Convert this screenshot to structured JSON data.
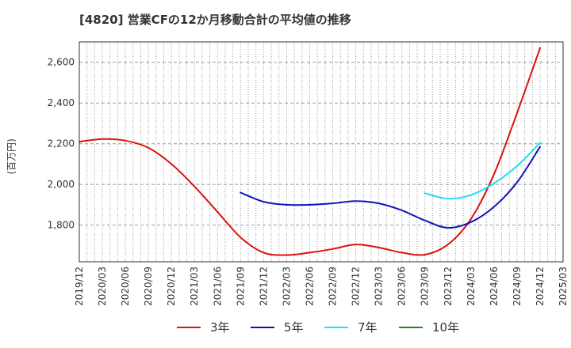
{
  "chart_data": {
    "type": "line",
    "title": "[4820]  営業CFの12か月移動合計の平均値の推移",
    "ylabel": "(百万円)",
    "xlabel": "",
    "ylim": [
      1620,
      2700
    ],
    "yticks": [
      1800,
      2000,
      2200,
      2400,
      2600
    ],
    "ytick_labels": [
      "1,800",
      "2,000",
      "2,200",
      "2,400",
      "2,600"
    ],
    "xtick_labels": [
      "2019/12",
      "2020/03",
      "2020/06",
      "2020/09",
      "2020/12",
      "2021/03",
      "2021/06",
      "2021/09",
      "2021/12",
      "2022/03",
      "2022/06",
      "2022/09",
      "2022/12",
      "2023/03",
      "2023/06",
      "2023/09",
      "2023/12",
      "2024/03",
      "2024/06",
      "2024/09",
      "2024/12",
      "2025/03"
    ],
    "grid": true,
    "legend_position": "bottom",
    "series": [
      {
        "name": "3年",
        "color": "#dd1111",
        "points": [
          [
            "2019/12",
            2210
          ],
          [
            "2020/03",
            2223
          ],
          [
            "2020/06",
            2215
          ],
          [
            "2020/09",
            2180
          ],
          [
            "2020/12",
            2100
          ],
          [
            "2021/03",
            1990
          ],
          [
            "2021/06",
            1865
          ],
          [
            "2021/09",
            1740
          ],
          [
            "2021/12",
            1665
          ],
          [
            "2022/03",
            1653
          ],
          [
            "2022/06",
            1665
          ],
          [
            "2022/09",
            1683
          ],
          [
            "2022/12",
            1705
          ],
          [
            "2023/03",
            1690
          ],
          [
            "2023/06",
            1665
          ],
          [
            "2023/09",
            1655
          ],
          [
            "2023/12",
            1705
          ],
          [
            "2024/03",
            1830
          ],
          [
            "2024/06",
            2050
          ],
          [
            "2024/09",
            2350
          ],
          [
            "2024/12",
            2670
          ]
        ]
      },
      {
        "name": "5年",
        "color": "#1111bb",
        "points": [
          [
            "2021/09",
            1960
          ],
          [
            "2021/12",
            1915
          ],
          [
            "2022/03",
            1900
          ],
          [
            "2022/06",
            1900
          ],
          [
            "2022/09",
            1907
          ],
          [
            "2022/12",
            1918
          ],
          [
            "2023/03",
            1907
          ],
          [
            "2023/06",
            1873
          ],
          [
            "2023/09",
            1823
          ],
          [
            "2023/12",
            1787
          ],
          [
            "2024/03",
            1815
          ],
          [
            "2024/06",
            1890
          ],
          [
            "2024/09",
            2010
          ],
          [
            "2024/12",
            2185
          ]
        ]
      },
      {
        "name": "7年",
        "color": "#22ddee",
        "points": [
          [
            "2023/09",
            1957
          ],
          [
            "2023/12",
            1930
          ],
          [
            "2024/03",
            1948
          ],
          [
            "2024/06",
            2005
          ],
          [
            "2024/09",
            2090
          ],
          [
            "2024/12",
            2205
          ]
        ]
      },
      {
        "name": "10年",
        "color": "#228822",
        "points": []
      }
    ]
  }
}
